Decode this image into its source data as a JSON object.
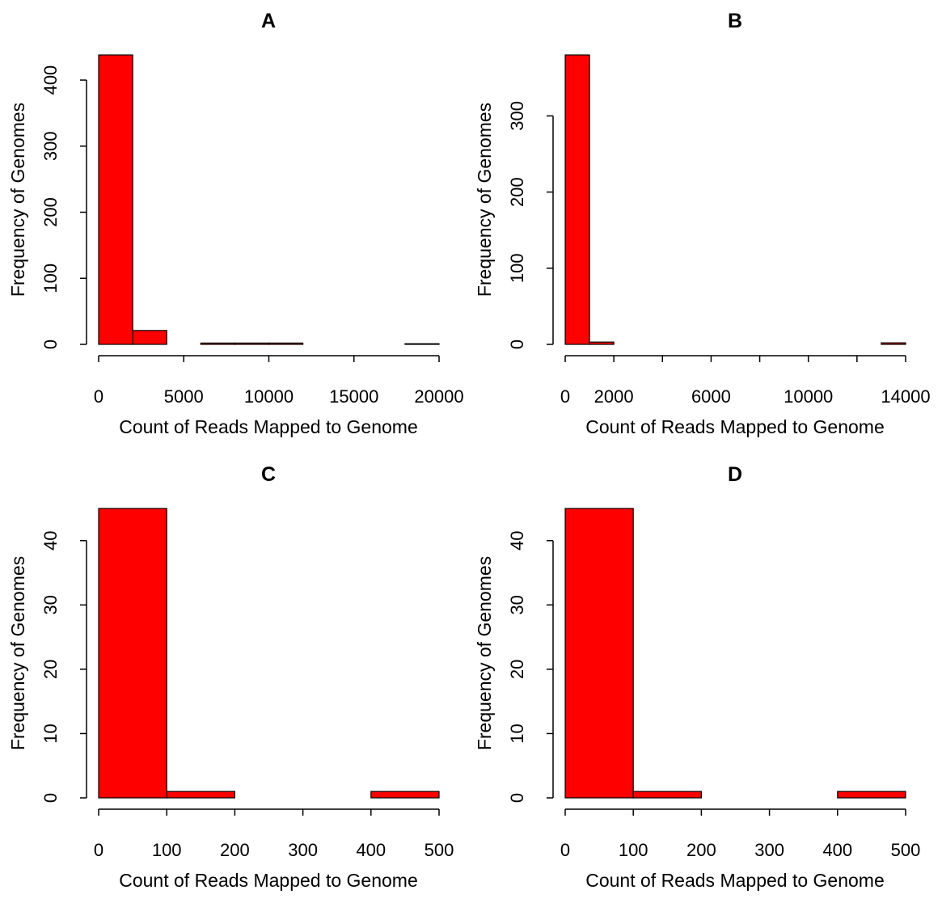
{
  "colors": {
    "bar_fill": "#ff0000",
    "bar_stroke": "#000000",
    "axis": "#000000",
    "background": "#ffffff"
  },
  "chart_data": [
    {
      "type": "bar",
      "title": "A",
      "xlabel": "Count of Reads Mapped to Genome",
      "ylabel": "Frequency of Genomes",
      "bin_edges": [
        0,
        2000,
        4000,
        6000,
        8000,
        10000,
        12000,
        14000,
        16000,
        18000,
        20000
      ],
      "values": [
        438,
        21,
        0,
        2,
        2,
        2,
        0,
        0,
        0,
        1
      ],
      "xlim": [
        0,
        20000
      ],
      "ylim": [
        0,
        438
      ],
      "xticks": [
        0,
        5000,
        10000,
        15000,
        20000
      ],
      "xtick_labels": [
        "0",
        "5000",
        "10000",
        "15000",
        "20000"
      ],
      "yticks": [
        0,
        100,
        200,
        300,
        400
      ],
      "ytick_labels": [
        "0",
        "100",
        "200",
        "300",
        "400"
      ],
      "grid": false
    },
    {
      "type": "bar",
      "title": "B",
      "xlabel": "Count of Reads Mapped to Genome",
      "ylabel": "Frequency of Genomes",
      "bin_edges": [
        0,
        1000,
        2000,
        3000,
        4000,
        5000,
        6000,
        7000,
        8000,
        9000,
        10000,
        11000,
        12000,
        13000,
        14000
      ],
      "values": [
        380,
        3,
        0,
        0,
        0,
        0,
        0,
        0,
        0,
        0,
        0,
        0,
        0,
        2
      ],
      "xlim": [
        0,
        14000
      ],
      "ylim": [
        0,
        380
      ],
      "xticks": [
        0,
        2000,
        4000,
        6000,
        8000,
        10000,
        12000,
        14000
      ],
      "xtick_labels": [
        "0",
        "2000",
        "",
        "6000",
        "",
        "10000",
        "",
        "14000"
      ],
      "yticks": [
        0,
        100,
        200,
        300
      ],
      "ytick_labels": [
        "0",
        "100",
        "200",
        "300"
      ],
      "grid": false
    },
    {
      "type": "bar",
      "title": "C",
      "xlabel": "Count of Reads Mapped to Genome",
      "ylabel": "Frequency of Genomes",
      "bin_edges": [
        0,
        100,
        200,
        300,
        400,
        500
      ],
      "values": [
        45,
        1,
        0,
        0,
        1
      ],
      "xlim": [
        0,
        500
      ],
      "ylim": [
        0,
        45
      ],
      "xticks": [
        0,
        100,
        200,
        300,
        400,
        500
      ],
      "xtick_labels": [
        "0",
        "100",
        "200",
        "300",
        "400",
        "500"
      ],
      "yticks": [
        0,
        10,
        20,
        30,
        40
      ],
      "ytick_labels": [
        "0",
        "10",
        "20",
        "30",
        "40"
      ],
      "grid": false
    },
    {
      "type": "bar",
      "title": "D",
      "xlabel": "Count of Reads Mapped to Genome",
      "ylabel": "Frequency of Genomes",
      "bin_edges": [
        0,
        100,
        200,
        300,
        400,
        500
      ],
      "values": [
        45,
        1,
        0,
        0,
        1
      ],
      "xlim": [
        0,
        500
      ],
      "ylim": [
        0,
        45
      ],
      "xticks": [
        0,
        100,
        200,
        300,
        400,
        500
      ],
      "xtick_labels": [
        "0",
        "100",
        "200",
        "300",
        "400",
        "500"
      ],
      "yticks": [
        0,
        10,
        20,
        30,
        40
      ],
      "ytick_labels": [
        "0",
        "10",
        "20",
        "30",
        "40"
      ],
      "grid": false
    }
  ]
}
